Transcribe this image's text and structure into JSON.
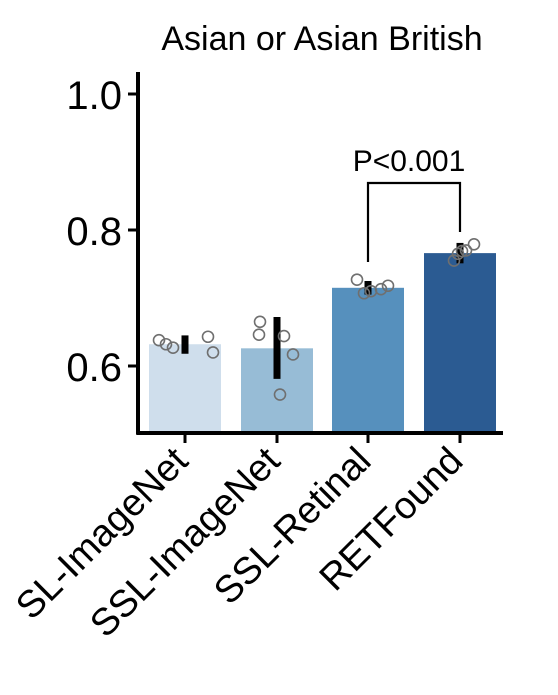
{
  "chart_data": {
    "type": "bar",
    "title": "Asian or Asian British",
    "xlabel": "",
    "ylabel": "",
    "categories": [
      "SL-ImageNet",
      "SSL-ImageNet",
      "SSL-Retinal",
      "RETFound"
    ],
    "values": [
      0.632,
      0.626,
      0.715,
      0.766
    ],
    "error": [
      [
        0.618,
        0.645
      ],
      [
        0.581,
        0.672
      ],
      [
        0.705,
        0.725
      ],
      [
        0.751,
        0.781
      ]
    ],
    "points": [
      [
        0.638,
        0.632,
        0.627,
        0.643,
        0.62
      ],
      [
        0.646,
        0.665,
        0.644,
        0.617,
        0.558
      ],
      [
        0.727,
        0.707,
        0.71,
        0.713,
        0.718
      ],
      [
        0.755,
        0.765,
        0.769,
        0.77,
        0.779
      ]
    ],
    "colors": [
      "#cfdeec",
      "#97bcd6",
      "#5690bd",
      "#2b5b92"
    ],
    "ylim": [
      0.5,
      1.03
    ],
    "yticks": [
      "0.6",
      "0.8",
      "1.0"
    ],
    "annotation": {
      "text": "P<0.001",
      "from": "SSL-Retinal",
      "to": "RETFound"
    },
    "grid": false,
    "legend": "none"
  }
}
